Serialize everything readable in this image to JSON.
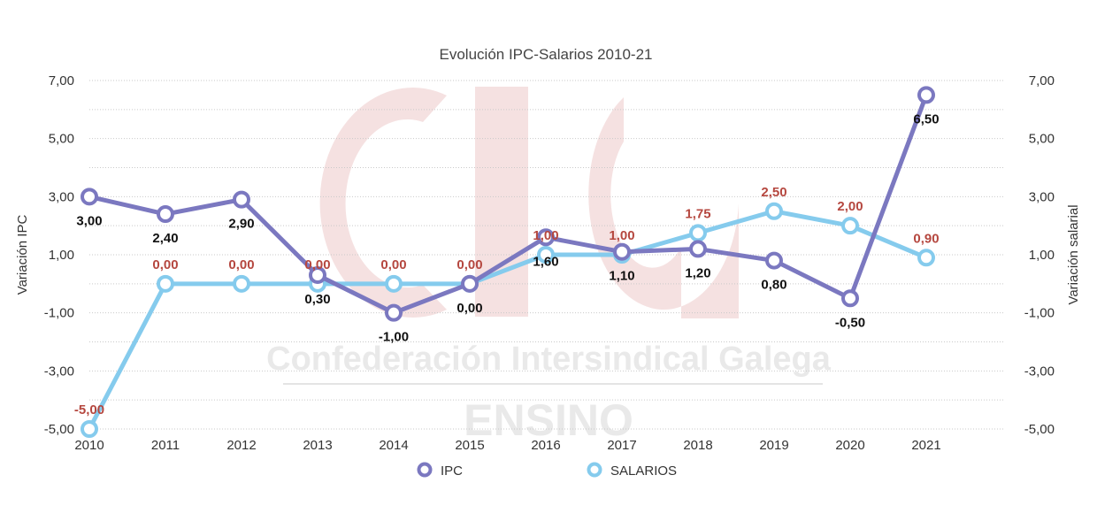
{
  "chart_data": {
    "type": "line",
    "title": "Evolución IPC-Salarios 2010-21",
    "x": [
      "2010",
      "2011",
      "2012",
      "2013",
      "2014",
      "2015",
      "2016",
      "2017",
      "2018",
      "2019",
      "2020",
      "2021"
    ],
    "ylabel_left": "Variación IPC",
    "ylabel_right": "Variación salarial",
    "ylim": [
      -5,
      7
    ],
    "yticks": [
      "7,00",
      "5,00",
      "3,00",
      "1,00",
      "-1,00",
      "-3,00",
      "-5,00"
    ],
    "ytick_values": [
      7,
      5,
      3,
      1,
      -1,
      -3,
      -5
    ],
    "grid": true,
    "legend_position": "bottom",
    "series": [
      {
        "name": "IPC",
        "color": "#7b78c0",
        "values": [
          3.0,
          2.4,
          2.9,
          0.3,
          -1.0,
          0.0,
          1.6,
          1.1,
          1.2,
          0.8,
          -0.5,
          6.5
        ],
        "labels": [
          "3,00",
          "2,40",
          "2,90",
          "0,30",
          "-1,00",
          "0,00",
          "1,60",
          "1,10",
          "1,20",
          "0,80",
          "-0,50",
          "6,50"
        ]
      },
      {
        "name": "SALARIOS",
        "color": "#85cbed",
        "values": [
          -5.0,
          0.0,
          0.0,
          0.0,
          0.0,
          0.0,
          1.0,
          1.0,
          1.75,
          2.5,
          2.0,
          0.9
        ],
        "labels": [
          "-5,00",
          "0,00",
          "0,00",
          "0,00",
          "0,00",
          "0,00",
          "1,00",
          "1,00",
          "1,75",
          "2,50",
          "2,00",
          "0,90"
        ]
      }
    ]
  },
  "watermark": {
    "org_name": "Confederación Intersindical Galega",
    "section": "ENSINO",
    "logo_text": "CIG",
    "logo_color": "#f4dede"
  }
}
